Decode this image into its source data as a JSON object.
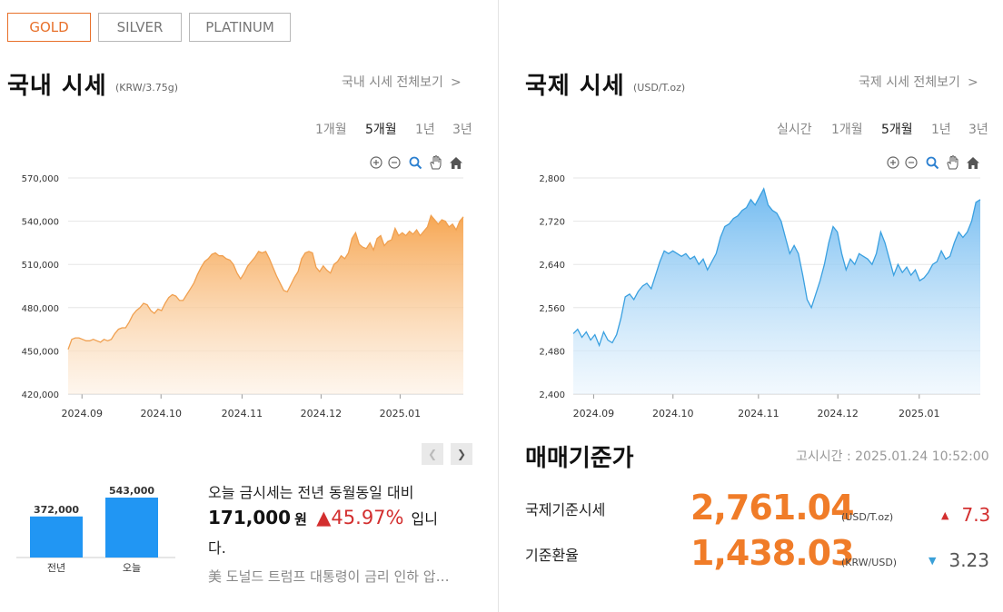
{
  "tabs": [
    {
      "label": "GOLD",
      "active": true
    },
    {
      "label": "SILVER",
      "active": false
    },
    {
      "label": "PLATINUM",
      "active": false
    }
  ],
  "domestic": {
    "title": "국내 시세",
    "unit": "(KRW/3.75g)",
    "more": "국내 시세 전체보기",
    "periods": [
      "1개월",
      "5개월",
      "1년",
      "3년"
    ],
    "active_period": "5개월"
  },
  "international": {
    "title": "국제 시세",
    "unit": "(USD/T.oz)",
    "more": "국제 시세 전체보기",
    "periods": [
      "실시간",
      "1개월",
      "5개월",
      "1년",
      "3년"
    ],
    "active_period": "5개월"
  },
  "toolbar_icons": [
    "zoom-in-icon",
    "zoom-out-icon",
    "magnify-icon",
    "pan-hand-icon",
    "home-icon"
  ],
  "colors": {
    "accent": "#e8702a",
    "domestic_line": "#f0a050",
    "international_line": "#3aa0e0",
    "bar": "#2196f3",
    "up": "#d32f2f",
    "down": "#3aa0d8",
    "value": "#f07c28"
  },
  "chart_data": [
    {
      "type": "area",
      "ylim": [
        420000,
        570000
      ],
      "yticks": [
        "420,000",
        "450,000",
        "480,000",
        "510,000",
        "540,000",
        "570,000"
      ],
      "ytick_values": [
        420000,
        450000,
        480000,
        510000,
        540000,
        570000
      ],
      "xticks": [
        "2024.09",
        "2024.10",
        "2024.11",
        "2024.12",
        "2025.01"
      ],
      "xtick_pos": [
        0.035,
        0.235,
        0.44,
        0.64,
        0.84
      ],
      "values": [
        451000,
        458000,
        459000,
        459000,
        458000,
        457000,
        457000,
        458000,
        457000,
        456000,
        458000,
        457000,
        458000,
        462000,
        465000,
        466000,
        466000,
        470000,
        475000,
        478000,
        480000,
        483000,
        482000,
        478000,
        476000,
        479000,
        478000,
        483000,
        487000,
        489000,
        488000,
        485000,
        485000,
        489000,
        493000,
        497000,
        503000,
        508000,
        512000,
        514000,
        517000,
        518000,
        516000,
        516000,
        514000,
        513000,
        510000,
        504000,
        500000,
        504000,
        509000,
        512000,
        515000,
        519000,
        518000,
        519000,
        514000,
        508000,
        502000,
        497000,
        492000,
        491000,
        496000,
        501000,
        505000,
        514000,
        518000,
        519000,
        518000,
        508000,
        505000,
        509000,
        506000,
        504000,
        510000,
        512000,
        516000,
        514000,
        518000,
        528000,
        532000,
        524000,
        522000,
        521000,
        525000,
        520000,
        528000,
        530000,
        523000,
        526000,
        527000,
        535000,
        530000,
        532000,
        530000,
        533000,
        531000,
        534000,
        530000,
        533000,
        536000,
        544000,
        541000,
        538000,
        541000,
        540000,
        536000,
        538000,
        534000,
        540000,
        543000
      ]
    },
    {
      "type": "area",
      "ylim": [
        2400,
        2800
      ],
      "yticks": [
        "2,400",
        "2,480",
        "2,560",
        "2,640",
        "2,720",
        "2,800"
      ],
      "ytick_values": [
        2400,
        2480,
        2560,
        2640,
        2720,
        2800
      ],
      "xticks": [
        "2024.09",
        "2024.10",
        "2024.11",
        "2024.12",
        "2025.01"
      ],
      "xtick_pos": [
        0.05,
        0.245,
        0.455,
        0.65,
        0.85
      ],
      "values": [
        2512,
        2520,
        2505,
        2515,
        2500,
        2510,
        2490,
        2515,
        2500,
        2495,
        2510,
        2540,
        2580,
        2585,
        2575,
        2590,
        2600,
        2605,
        2595,
        2620,
        2645,
        2665,
        2660,
        2665,
        2660,
        2655,
        2660,
        2650,
        2655,
        2640,
        2650,
        2630,
        2645,
        2660,
        2690,
        2710,
        2715,
        2725,
        2730,
        2740,
        2745,
        2760,
        2750,
        2765,
        2780,
        2750,
        2740,
        2735,
        2720,
        2690,
        2660,
        2675,
        2660,
        2620,
        2575,
        2560,
        2585,
        2610,
        2640,
        2680,
        2710,
        2700,
        2660,
        2630,
        2650,
        2640,
        2660,
        2655,
        2650,
        2640,
        2660,
        2700,
        2680,
        2650,
        2620,
        2640,
        2625,
        2635,
        2620,
        2630,
        2610,
        2615,
        2625,
        2640,
        2645,
        2665,
        2650,
        2655,
        2680,
        2700,
        2690,
        2700,
        2720,
        2755,
        2760
      ]
    },
    {
      "type": "bar",
      "categories": [
        "전년",
        "오늘"
      ],
      "values": [
        372000,
        543000
      ],
      "labels": [
        "372,000",
        "543,000"
      ],
      "ylim": [
        0,
        543000
      ]
    }
  ],
  "summary": {
    "line1": "오늘 금시세는 전년 동월동일 대비",
    "amount": "171,000",
    "won": "원",
    "arrow": "▲",
    "pct": "45.97%",
    "suffix": "입니",
    "line3": "다.",
    "headline": "美 도널드 트럼프 대통령이 금리 인하 압…"
  },
  "basis": {
    "title": "매매기준가",
    "time": "고시시간 : 2025.01.24 10:52:00",
    "rows": [
      {
        "label": "국제기준시세",
        "value": "2,761.04",
        "unit": "(USD/T.oz)",
        "arrow": "▲",
        "change": "7.3"
      },
      {
        "label": "기준환율",
        "value": "1,438.03",
        "unit": "(KRW/USD)",
        "arrow": "▼",
        "change": "3.23"
      }
    ]
  }
}
